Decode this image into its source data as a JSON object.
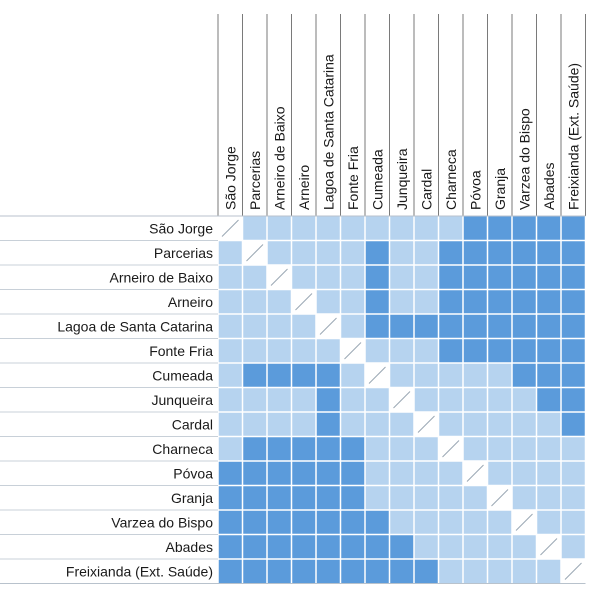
{
  "stops": [
    "São Jorge",
    "Parcerias",
    "Arneiro de Baixo",
    "Arneiro",
    "Lagoa de Santa Catarina",
    "Fonte Fria",
    "Cumeada",
    "Junqueira",
    "Cardal",
    "Charneca",
    "Póvoa",
    "Granja",
    "Varzea do Bispo",
    "Abades",
    "Freixianda (Ext. Saúde)"
  ],
  "colors": {
    "light": "#b6d3ef",
    "dark": "#5b9bdb",
    "diagonal": "#ffffff",
    "grid": "#ffffff",
    "diag_line": "#9aa7b3"
  },
  "matrix": [
    [
      0,
      1,
      1,
      1,
      1,
      1,
      1,
      1,
      1,
      1,
      2,
      2,
      2,
      2,
      2
    ],
    [
      1,
      0,
      1,
      1,
      1,
      1,
      2,
      1,
      1,
      2,
      2,
      2,
      2,
      2,
      2
    ],
    [
      1,
      1,
      0,
      1,
      1,
      1,
      2,
      1,
      1,
      2,
      2,
      2,
      2,
      2,
      2
    ],
    [
      1,
      1,
      1,
      0,
      1,
      1,
      2,
      1,
      1,
      2,
      2,
      2,
      2,
      2,
      2
    ],
    [
      1,
      1,
      1,
      1,
      0,
      1,
      2,
      2,
      2,
      2,
      2,
      2,
      2,
      2,
      2
    ],
    [
      1,
      1,
      1,
      1,
      1,
      0,
      1,
      1,
      1,
      2,
      2,
      2,
      2,
      2,
      2
    ],
    [
      1,
      2,
      2,
      2,
      2,
      1,
      0,
      1,
      1,
      1,
      1,
      1,
      2,
      2,
      2
    ],
    [
      1,
      1,
      1,
      1,
      2,
      1,
      1,
      0,
      1,
      1,
      1,
      1,
      1,
      2,
      2
    ],
    [
      1,
      1,
      1,
      1,
      2,
      1,
      1,
      1,
      0,
      1,
      1,
      1,
      1,
      1,
      2
    ],
    [
      1,
      2,
      2,
      2,
      2,
      2,
      1,
      1,
      1,
      0,
      1,
      1,
      1,
      1,
      1
    ],
    [
      2,
      2,
      2,
      2,
      2,
      2,
      1,
      1,
      1,
      1,
      0,
      1,
      1,
      1,
      1
    ],
    [
      2,
      2,
      2,
      2,
      2,
      2,
      1,
      1,
      1,
      1,
      1,
      0,
      1,
      1,
      1
    ],
    [
      2,
      2,
      2,
      2,
      2,
      2,
      2,
      1,
      1,
      1,
      1,
      1,
      0,
      1,
      1
    ],
    [
      2,
      2,
      2,
      2,
      2,
      2,
      2,
      2,
      1,
      1,
      1,
      1,
      1,
      0,
      1
    ],
    [
      2,
      2,
      2,
      2,
      2,
      2,
      2,
      2,
      2,
      1,
      1,
      1,
      1,
      1,
      0
    ]
  ]
}
